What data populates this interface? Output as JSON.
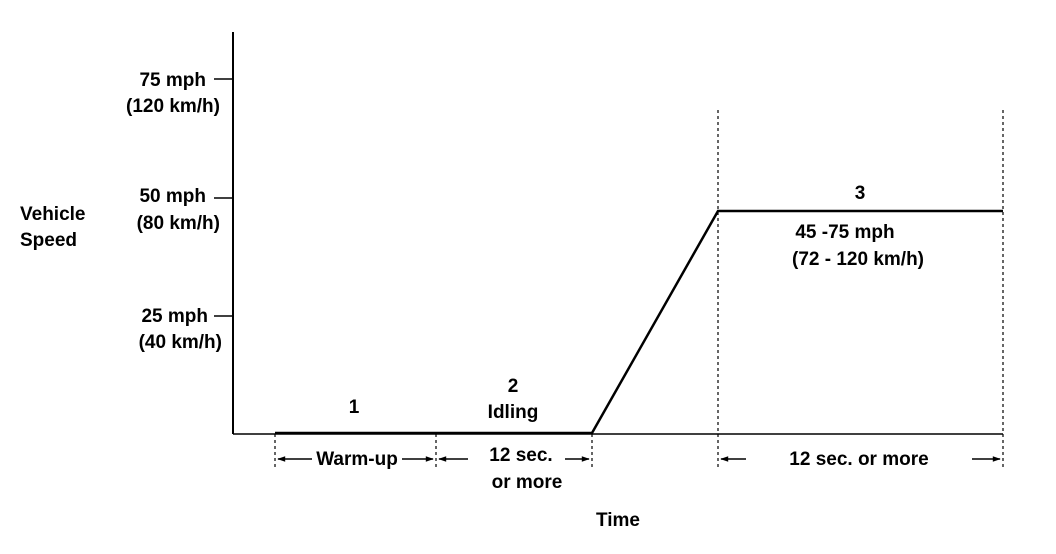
{
  "y_axis": {
    "label_line1": "Vehicle",
    "label_line2": "Speed",
    "ticks": [
      {
        "mph": "75 mph",
        "kmh": "(120 km/h)"
      },
      {
        "mph": "50 mph",
        "kmh": "(80 km/h)"
      },
      {
        "mph": "25 mph",
        "kmh": "(40 km/h)"
      }
    ]
  },
  "x_axis": {
    "label": "Time"
  },
  "phases": {
    "p1": {
      "number": "1",
      "duration": "Warm-up"
    },
    "p2": {
      "number": "2",
      "name": "Idling",
      "duration_line1": "12 sec.",
      "duration_line2": "or  more"
    },
    "p3": {
      "number": "3",
      "range_mph": "45 -75 mph",
      "range_kmh": "(72 - 120 km/h)",
      "duration": "12 sec. or  more"
    }
  }
}
